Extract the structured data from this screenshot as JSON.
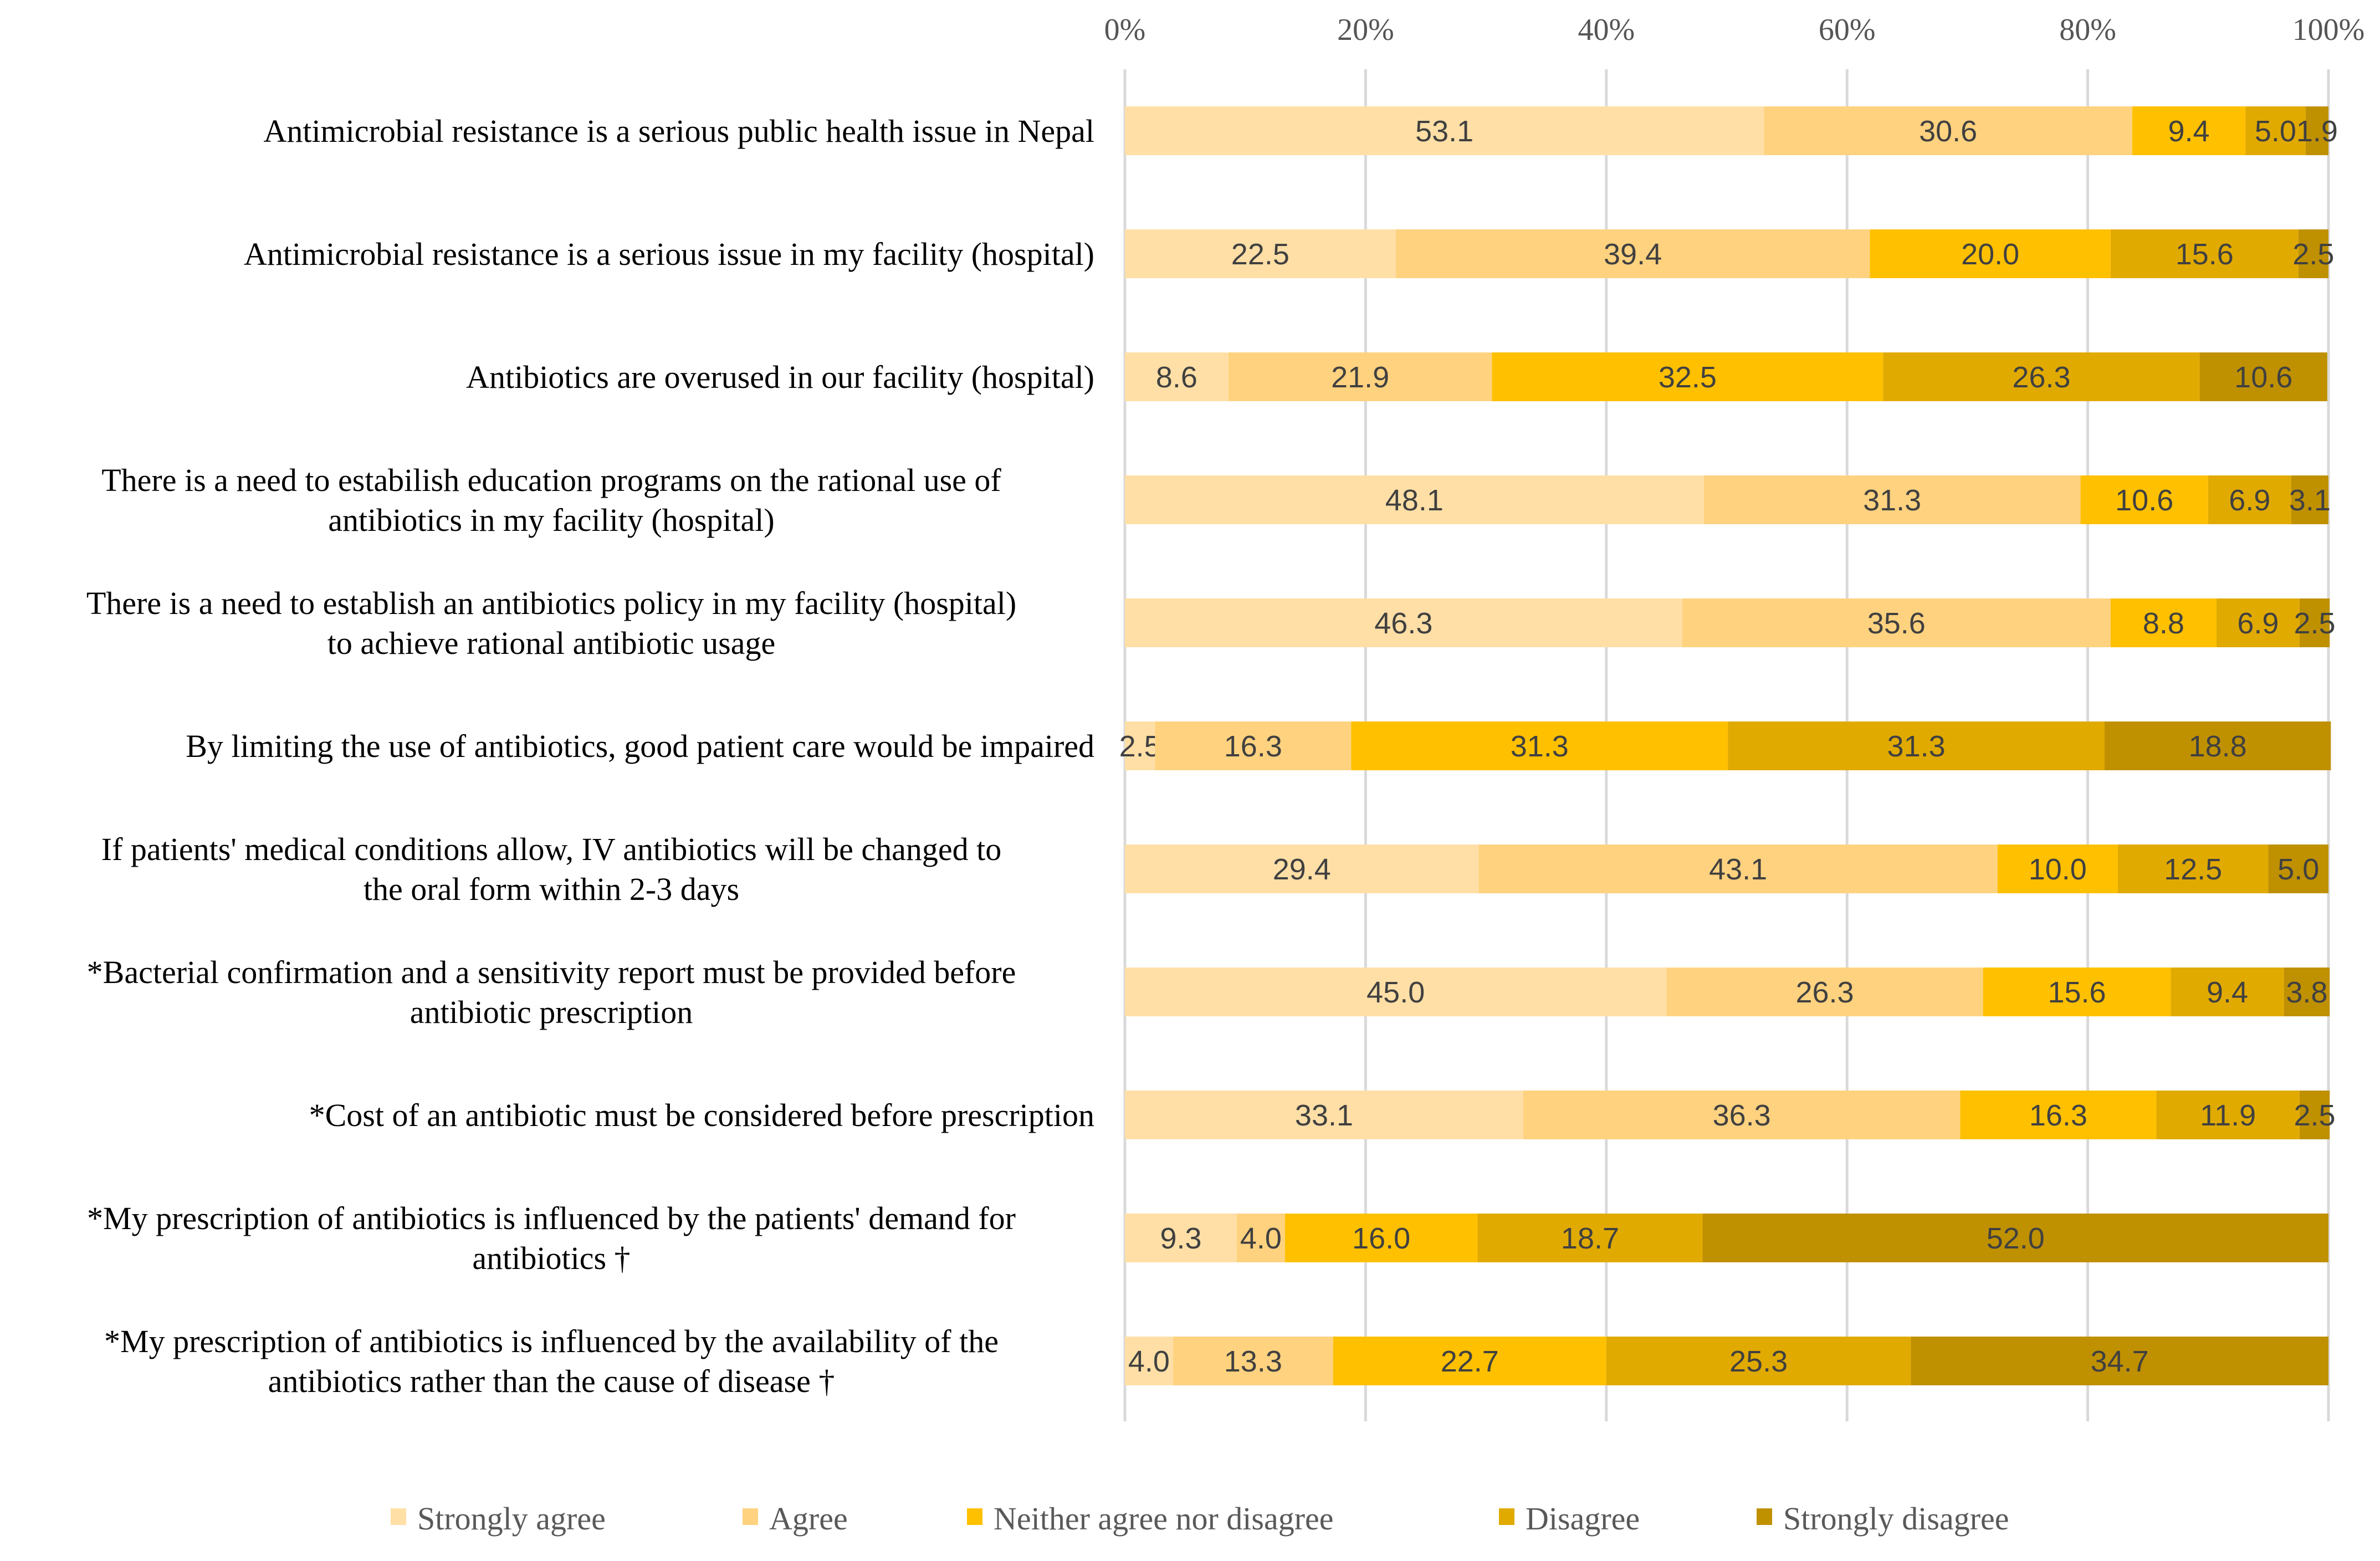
{
  "chart_data": {
    "type": "bar",
    "orientation": "horizontal",
    "stacked": "100%",
    "title": "",
    "xlabel": "",
    "ylabel": "",
    "xlim": [
      0,
      100
    ],
    "x_ticks": [
      "0%",
      "20%",
      "40%",
      "60%",
      "80%",
      "100%"
    ],
    "grid": true,
    "legend_position": "bottom",
    "categories": [
      [
        "Antimicrobial resistance is a serious public health issue in Nepal"
      ],
      [
        "Antimicrobial resistance is a serious issue in my facility (hospital)"
      ],
      [
        "Antibiotics are overused in our facility (hospital)"
      ],
      [
        "There is a need to estabilish education programs on the rational use of",
        "antibiotics in my facility (hospital)"
      ],
      [
        "There is a need to establish an antibiotics policy in my facility (hospital)",
        "to achieve  rational antibiotic usage"
      ],
      [
        "By limiting the use of antibiotics, good patient care would be impaired"
      ],
      [
        "If patients' medical conditions allow, IV antibiotics will be changed to",
        "the oral form within 2-3 days"
      ],
      [
        "*Bacterial confirmation and a sensitivity report must be provided before",
        "antibiotic prescription"
      ],
      [
        "*Cost of an antibiotic must be considered before prescription"
      ],
      [
        "*My prescription of antibiotics is influenced by the patients' demand for",
        "antibiotics †"
      ],
      [
        "*My prescription of antibiotics is influenced by the availability of the",
        "antibiotics rather than the cause of disease †"
      ]
    ],
    "series": [
      {
        "name": "Strongly agree",
        "color": "#FFDFA6",
        "values": [
          53.1,
          22.5,
          8.6,
          48.1,
          46.3,
          2.5,
          29.4,
          45.0,
          33.1,
          9.3,
          4.0
        ]
      },
      {
        "name": "Agree",
        "color": "#FFD27F",
        "values": [
          30.6,
          39.4,
          21.9,
          31.3,
          35.6,
          16.3,
          43.1,
          26.3,
          36.3,
          4.0,
          13.3
        ]
      },
      {
        "name": "Neither agree nor disagree",
        "color": "#FFC000",
        "values": [
          9.4,
          20.0,
          32.5,
          10.6,
          8.8,
          31.3,
          10.0,
          15.6,
          16.3,
          16.0,
          22.7
        ]
      },
      {
        "name": "Disagree",
        "color": "#E1AA00",
        "values": [
          5.0,
          15.6,
          26.3,
          6.9,
          6.9,
          31.3,
          12.5,
          9.4,
          11.9,
          18.7,
          25.3
        ]
      },
      {
        "name": "Strongly disagree",
        "color": "#BF9000",
        "values": [
          1.9,
          2.5,
          10.6,
          3.1,
          2.5,
          18.8,
          5.0,
          3.8,
          2.5,
          52.0,
          34.7
        ]
      }
    ]
  }
}
